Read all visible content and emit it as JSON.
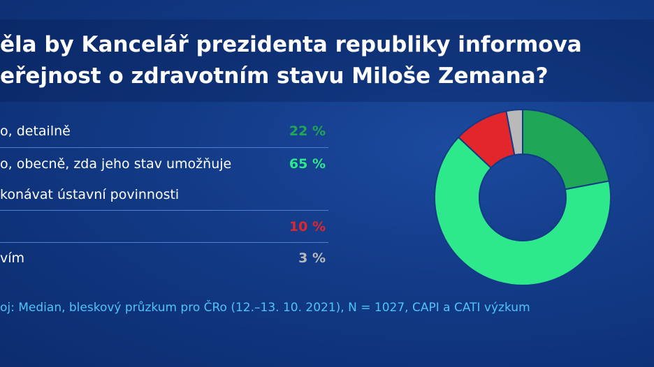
{
  "title": {
    "line1": "ěla by Kancelář prezidenta republiky informova",
    "line2": "eřejnost o zdravotním stavu Miloše Zemana?"
  },
  "rows": [
    {
      "text": "o, detailně",
      "text2": "",
      "value_label": "22 %",
      "color": "#1fa757"
    },
    {
      "text": "o, obecně, zda jeho stav umožňuje",
      "text2": "konávat ústavní povinnosti",
      "value_label": "65 %",
      "color": "#2ee88c"
    },
    {
      "text": "",
      "text2": "",
      "value_label": "10 %",
      "color": "#e2262c"
    },
    {
      "text": "vím",
      "text2": "",
      "value_label": "3 %",
      "color": "#b9b9b9"
    }
  ],
  "source": "oj: Median, bleskový průzkum pro ČRo (12.–13. 10. 2021), N = 1027, CAPI a CATI výzkum",
  "chart_data": {
    "type": "pie",
    "donut": true,
    "values": [
      22,
      65,
      10,
      3
    ],
    "colors": [
      "#1fa757",
      "#2ee88c",
      "#e2262c",
      "#b9b9b9"
    ],
    "start": "top",
    "direction": "clockwise"
  }
}
